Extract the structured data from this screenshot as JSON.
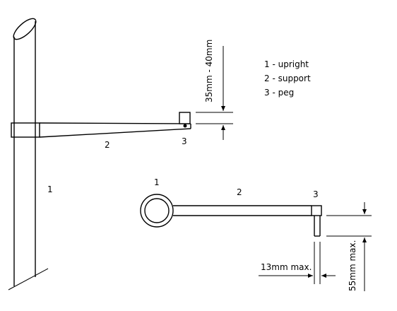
{
  "legend": {
    "item1": "1 - upright",
    "item2": "2 - support",
    "item3": "3 - peg"
  },
  "side_view": {
    "label_upright": "1",
    "label_support": "2",
    "label_peg": "3",
    "height_dimension": "35mm - 40mm"
  },
  "top_view": {
    "label_upright": "1",
    "label_support": "2",
    "label_peg": "3",
    "width_dimension": "13mm max.",
    "length_dimension": "55mm max."
  }
}
